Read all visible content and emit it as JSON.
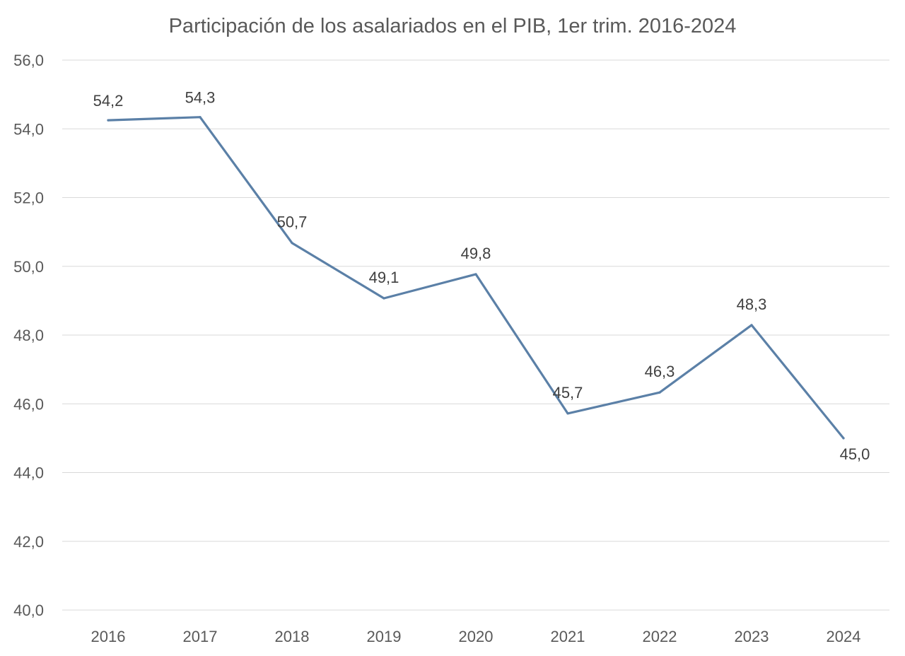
{
  "chart_data": {
    "type": "line",
    "title": "Participación de los asalariados en el PIB, 1er trim. 2016-2024",
    "xlabel": "",
    "ylabel": "",
    "categories": [
      "2016",
      "2017",
      "2018",
      "2019",
      "2020",
      "2021",
      "2022",
      "2023",
      "2024"
    ],
    "series": [
      {
        "values": [
          54.25,
          54.34,
          50.68,
          49.07,
          49.77,
          45.72,
          46.33,
          48.29,
          45.0
        ],
        "data_labels": [
          "54,2",
          "54,3",
          "50,7",
          "49,1",
          "49,8",
          "45,7",
          "46,3",
          "48,3",
          "45,0"
        ],
        "color": "#5b80a7"
      }
    ],
    "ylim": [
      40,
      56
    ],
    "y_ticks": [
      40,
      42,
      44,
      46,
      48,
      50,
      52,
      54,
      56
    ],
    "y_tick_labels": [
      "40,0",
      "42,0",
      "44,0",
      "46,0",
      "48,0",
      "50,0",
      "52,0",
      "54,0",
      "56,0"
    ],
    "grid": true,
    "legend": "none",
    "gridline_color": "#d9d9d9",
    "text_color": "#595959"
  }
}
